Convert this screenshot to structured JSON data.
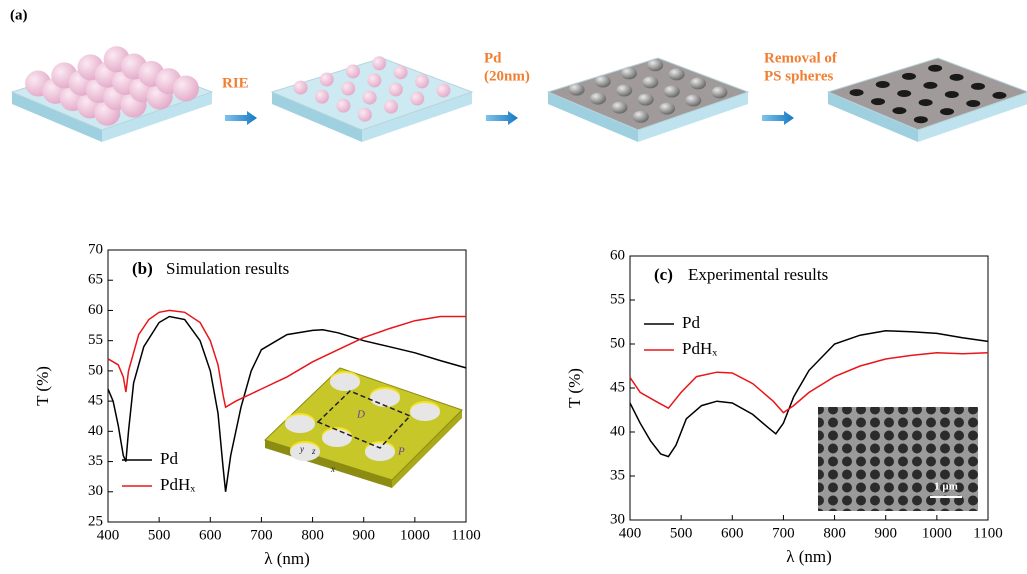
{
  "figure_a": {
    "label": "(a)",
    "steps": [
      [
        "RIE"
      ],
      [
        "Pd",
        "(20nm)"
      ],
      [
        "Removal of",
        "PS spheres"
      ]
    ]
  },
  "chart_data": [
    {
      "type": "line",
      "label": "(b)",
      "title": "Simulation results",
      "xlabel": "λ (nm)",
      "ylabel": "T (%)",
      "xlim": [
        400,
        1100
      ],
      "xticks": [
        400,
        500,
        600,
        700,
        800,
        900,
        1000,
        1100
      ],
      "ylim": [
        25,
        70
      ],
      "yticks": [
        25,
        30,
        35,
        40,
        45,
        50,
        55,
        60,
        65,
        70
      ],
      "legend": "lower left",
      "inset_labels": [
        "D",
        "P",
        "x",
        "y",
        "z"
      ],
      "series": [
        {
          "name": "Pd",
          "color": "#000000",
          "x": [
            400,
            410,
            420,
            430,
            435,
            440,
            450,
            470,
            500,
            520,
            550,
            580,
            600,
            615,
            625,
            630,
            640,
            660,
            680,
            700,
            750,
            800,
            820,
            850,
            900,
            950,
            1000,
            1050,
            1100
          ],
          "values": [
            47,
            45,
            41,
            36,
            35,
            40,
            48,
            54,
            58,
            59,
            58.5,
            55,
            50,
            43,
            34,
            30,
            36,
            44,
            50,
            53.5,
            56,
            56.7,
            56.8,
            56.3,
            55,
            54,
            53,
            51.7,
            50.5
          ]
        },
        {
          "name": "PdHₓ",
          "color": "#e8161b",
          "x": [
            400,
            420,
            430,
            435,
            440,
            460,
            480,
            500,
            520,
            550,
            580,
            600,
            615,
            625,
            630,
            650,
            700,
            750,
            800,
            850,
            900,
            950,
            1000,
            1050,
            1100
          ],
          "values": [
            52,
            51,
            49,
            46.5,
            50,
            56,
            58.5,
            59.7,
            60,
            59.7,
            58,
            55,
            51,
            46,
            44,
            45,
            47,
            49,
            51.5,
            53.5,
            55.5,
            57,
            58.3,
            59,
            59
          ]
        }
      ]
    },
    {
      "type": "line",
      "label": "(c)",
      "title": "Experimental results",
      "xlabel": "λ (nm)",
      "ylabel": "T (%)",
      "xlim": [
        400,
        1100
      ],
      "xticks": [
        400,
        500,
        600,
        700,
        800,
        900,
        1000,
        1100
      ],
      "ylim": [
        30,
        60
      ],
      "yticks": [
        30,
        35,
        40,
        45,
        50,
        55,
        60
      ],
      "legend": "upper left",
      "inset_labels": [
        "1 μm"
      ],
      "series": [
        {
          "name": "Pd",
          "color": "#000000",
          "x": [
            400,
            420,
            440,
            460,
            475,
            490,
            510,
            540,
            570,
            600,
            640,
            670,
            685,
            700,
            720,
            750,
            800,
            850,
            900,
            950,
            1000,
            1050,
            1100
          ],
          "values": [
            43.3,
            41,
            39,
            37.5,
            37.2,
            38.5,
            41.5,
            43,
            43.5,
            43.3,
            42,
            40.5,
            39.8,
            41,
            44,
            47,
            50,
            51,
            51.5,
            51.4,
            51.2,
            50.7,
            50.3
          ]
        },
        {
          "name": "PdHₓ",
          "color": "#e8161b",
          "x": [
            400,
            420,
            450,
            475,
            500,
            530,
            570,
            600,
            640,
            680,
            700,
            720,
            750,
            800,
            850,
            900,
            950,
            1000,
            1050,
            1100
          ],
          "values": [
            46.2,
            44.5,
            43.5,
            42.7,
            44.5,
            46.3,
            46.8,
            46.7,
            45.5,
            43.5,
            42.2,
            43,
            44.5,
            46.3,
            47.5,
            48.3,
            48.7,
            49,
            48.9,
            49
          ]
        }
      ]
    }
  ]
}
